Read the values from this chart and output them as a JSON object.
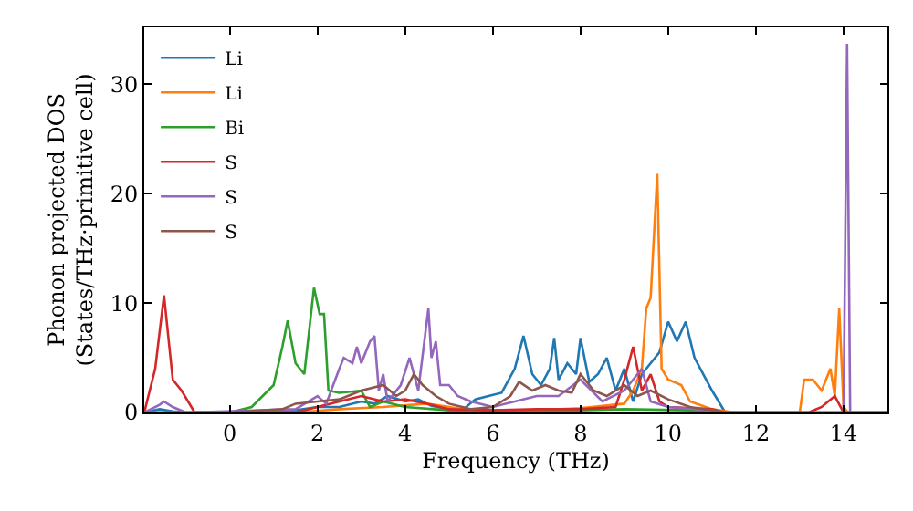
{
  "chart_data": {
    "type": "line",
    "xlabel": "Frequency (THz)",
    "ylabel": "Phonon projected DOS\n(States/THz·primitive cell)",
    "xlim": [
      -1.95,
      15
    ],
    "ylim": [
      0,
      35.2
    ],
    "xticks": [
      0,
      2,
      4,
      6,
      8,
      10,
      12,
      14
    ],
    "yticks": [
      0,
      10,
      20,
      30
    ],
    "legend": "top left",
    "series": [
      {
        "name": "Li",
        "color": "#1f77b4",
        "x": [
          -1.95,
          -1.6,
          -1.3,
          -1.0,
          0.5,
          1.5,
          2.0,
          2.5,
          3.0,
          3.3,
          3.6,
          4.0,
          4.3,
          4.6,
          5.0,
          5.3,
          5.6,
          5.9,
          6.2,
          6.5,
          6.7,
          6.9,
          7.1,
          7.3,
          7.4,
          7.5,
          7.7,
          7.9,
          8.0,
          8.2,
          8.4,
          8.6,
          8.8,
          9.0,
          9.2,
          9.4,
          9.6,
          9.8,
          10.0,
          10.2,
          10.4,
          10.6,
          10.8,
          11.0,
          11.3,
          15
        ],
        "values": [
          0,
          0.3,
          0.1,
          0,
          0,
          0.2,
          0.5,
          0.5,
          1.0,
          0.8,
          1.5,
          1.0,
          1.2,
          0.6,
          0.3,
          0.2,
          1.2,
          1.5,
          1.8,
          4.0,
          7.0,
          3.5,
          2.5,
          4.0,
          6.8,
          3.0,
          4.5,
          3.5,
          6.8,
          2.8,
          3.5,
          5.0,
          2.0,
          4.0,
          1.0,
          3.5,
          4.5,
          5.5,
          8.3,
          6.5,
          8.3,
          5.0,
          3.5,
          2.0,
          0,
          0
        ]
      },
      {
        "name": "Li",
        "color": "#ff7f0e",
        "x": [
          -1.95,
          1.5,
          2.5,
          3.5,
          4.5,
          5.5,
          7,
          8,
          9.0,
          9.2,
          9.4,
          9.5,
          9.6,
          9.75,
          9.85,
          10.0,
          10.3,
          10.5,
          11.0,
          11.5,
          13.0,
          13.1,
          13.3,
          13.5,
          13.7,
          13.8,
          13.9,
          14.0,
          14.1,
          15
        ],
        "values": [
          0,
          0,
          0.3,
          0.5,
          0.8,
          0.2,
          0.2,
          0.4,
          0.8,
          2.0,
          4.0,
          9.5,
          10.5,
          21.8,
          4.0,
          3.0,
          2.5,
          1.0,
          0.3,
          0,
          0,
          3.0,
          3.0,
          2.0,
          4.0,
          1.5,
          9.5,
          0.5,
          0,
          0
        ]
      },
      {
        "name": "Bi",
        "color": "#2ca02c",
        "x": [
          -1.95,
          0.0,
          0.5,
          1.0,
          1.2,
          1.32,
          1.5,
          1.7,
          1.92,
          2.05,
          2.15,
          2.25,
          2.5,
          3.0,
          3.2,
          3.5,
          4.0,
          5.0,
          7.0,
          9.0,
          10.5,
          11.0,
          15
        ],
        "values": [
          0,
          0,
          0.5,
          2.5,
          6.0,
          8.4,
          4.5,
          3.5,
          11.4,
          9.0,
          9.0,
          2.0,
          1.8,
          2.0,
          0.5,
          1.0,
          0.5,
          0.2,
          0.1,
          0.3,
          0.2,
          0,
          0
        ]
      },
      {
        "name": "S",
        "color": "#d62728",
        "x": [
          -1.95,
          -1.7,
          -1.5,
          -1.3,
          -1.1,
          -0.8,
          1.5,
          2.0,
          2.5,
          3.0,
          3.5,
          4.0,
          4.5,
          5.0,
          6.0,
          7.0,
          8.0,
          8.8,
          9.0,
          9.2,
          9.4,
          9.6,
          9.8,
          10.0,
          11.0,
          11.3,
          13.2,
          13.5,
          13.8,
          14.0,
          15
        ],
        "values": [
          0,
          4.0,
          10.7,
          3.0,
          2.0,
          0,
          0,
          0.5,
          1.0,
          1.5,
          1.0,
          1.2,
          0.8,
          0.3,
          0.2,
          0.3,
          0.3,
          0.5,
          3.0,
          6.0,
          2.0,
          3.5,
          1.0,
          0.5,
          0.3,
          0,
          0,
          0.5,
          1.5,
          0,
          0
        ]
      },
      {
        "name": "S",
        "color": "#9467bd",
        "x": [
          -1.95,
          -1.6,
          -1.5,
          -1.3,
          -1.0,
          1.5,
          2.0,
          2.2,
          2.5,
          2.6,
          2.8,
          2.9,
          3.0,
          3.2,
          3.3,
          3.4,
          3.5,
          3.6,
          3.9,
          4.1,
          4.3,
          4.53,
          4.6,
          4.7,
          4.8,
          5.0,
          5.2,
          5.5,
          6.0,
          6.5,
          7.0,
          7.5,
          8.0,
          8.5,
          9.0,
          9.4,
          9.6,
          10.0,
          11.0,
          11.3,
          14.0,
          14.08,
          14.15,
          15
        ],
        "values": [
          0,
          0.7,
          1.0,
          0.5,
          0,
          0.3,
          1.5,
          0.8,
          4.0,
          5.0,
          4.5,
          6.0,
          4.5,
          6.5,
          7.0,
          2.0,
          3.5,
          1.0,
          2.5,
          5.0,
          2.0,
          9.5,
          5.0,
          6.5,
          2.5,
          2.5,
          1.5,
          1.0,
          0.5,
          1.0,
          1.5,
          1.5,
          3.0,
          1.0,
          2.0,
          4.0,
          1.0,
          0.5,
          0.2,
          0,
          0,
          33.7,
          0,
          0
        ]
      },
      {
        "name": "S",
        "color": "#8c564b",
        "x": [
          -1.95,
          0.0,
          1.2,
          1.5,
          2.0,
          2.5,
          3.0,
          3.5,
          3.8,
          4.0,
          4.2,
          4.4,
          4.7,
          5.0,
          5.5,
          6.0,
          6.4,
          6.6,
          6.9,
          7.2,
          7.5,
          7.8,
          8.0,
          8.3,
          8.6,
          9.0,
          9.3,
          9.6,
          10.0,
          10.5,
          11.0,
          11.3,
          15
        ],
        "values": [
          0,
          0,
          0.3,
          0.8,
          1.0,
          1.2,
          2.0,
          2.5,
          1.5,
          2.0,
          3.5,
          2.5,
          1.5,
          0.8,
          0.3,
          0.5,
          1.5,
          2.8,
          2.0,
          2.5,
          2.0,
          1.8,
          3.5,
          2.0,
          1.5,
          2.5,
          1.5,
          2.0,
          1.2,
          0.5,
          0.2,
          0,
          0
        ]
      }
    ]
  }
}
